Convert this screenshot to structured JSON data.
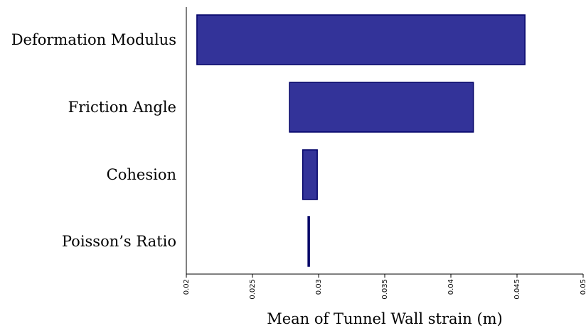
{
  "chart_data": {
    "type": "bar",
    "orientation": "horizontal",
    "style": "tornado",
    "categories": [
      "Deformation Modulus",
      "Friction Angle",
      "Cohesion",
      "Poisson’s Ratio"
    ],
    "ranges": [
      {
        "low": 0.0208,
        "high": 0.0456
      },
      {
        "low": 0.0278,
        "high": 0.0417
      },
      {
        "low": 0.0288,
        "high": 0.0299
      },
      {
        "low": 0.0292,
        "high": 0.0293
      }
    ],
    "title": "",
    "xlabel": "Mean of Tunnel Wall strain (m)",
    "ylabel": "",
    "xlim": [
      0.02,
      0.05
    ],
    "xticks": [
      "0.02",
      "0.025",
      "0.03",
      "0.035",
      "0.04",
      "0.045",
      "0.05"
    ],
    "grid": false,
    "legend": "none",
    "bar_fill": "#333399",
    "bar_edge": "#000066"
  }
}
